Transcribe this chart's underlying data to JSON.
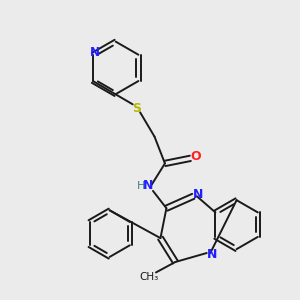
{
  "bg_color": "#ebebeb",
  "bond_color": "#1a1a1a",
  "N_color": "#2020ff",
  "O_color": "#ff2020",
  "S_color": "#b8b800",
  "H_color": "#408080",
  "lw": 1.4,
  "dbo": 0.12,
  "xlim": [
    0,
    10
  ],
  "ylim": [
    0,
    10
  ]
}
